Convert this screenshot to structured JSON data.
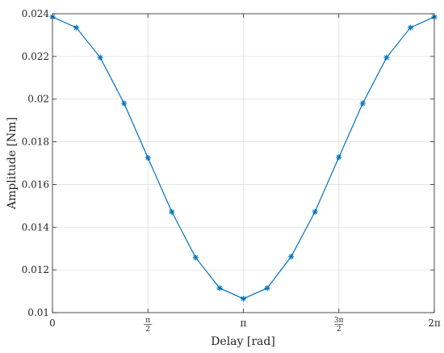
{
  "chart_data": {
    "type": "line",
    "xlabel": "Delay [rad]",
    "ylabel": "Amplitude [Nm]",
    "xlim": [
      0,
      6.283185
    ],
    "ylim": [
      0.01,
      0.024
    ],
    "grid": true,
    "legend": "none",
    "marker": "asterisk",
    "color": "#0072BD",
    "x_ticks": [
      {
        "value": 0,
        "label": "0"
      },
      {
        "value": 1.570796,
        "num": "π",
        "den": "2"
      },
      {
        "value": 3.141593,
        "label": "π"
      },
      {
        "value": 4.712389,
        "num": "3π",
        "den": "2"
      },
      {
        "value": 6.283185,
        "label": "2π"
      }
    ],
    "y_ticks": [
      {
        "value": 0.01,
        "label": "0.01"
      },
      {
        "value": 0.012,
        "label": "0.012"
      },
      {
        "value": 0.014,
        "label": "0.014"
      },
      {
        "value": 0.016,
        "label": "0.016"
      },
      {
        "value": 0.018,
        "label": "0.018"
      },
      {
        "value": 0.02,
        "label": "0.02"
      },
      {
        "value": 0.022,
        "label": "0.022"
      },
      {
        "value": 0.024,
        "label": "0.024"
      }
    ],
    "series": [
      {
        "x": [
          0,
          0.392699,
          0.785398,
          1.178097,
          1.570796,
          1.963495,
          2.356194,
          2.748894,
          3.141593,
          3.534292,
          3.926991,
          4.31969,
          4.712389,
          5.105088,
          5.497787,
          5.890486,
          6.283185
        ],
        "values": [
          0.02385,
          0.02335,
          0.02195,
          0.0198,
          0.01725,
          0.01472,
          0.01258,
          0.01115,
          0.01065,
          0.01115,
          0.01262,
          0.01472,
          0.01728,
          0.0198,
          0.02195,
          0.02335,
          0.02385
        ]
      }
    ]
  }
}
